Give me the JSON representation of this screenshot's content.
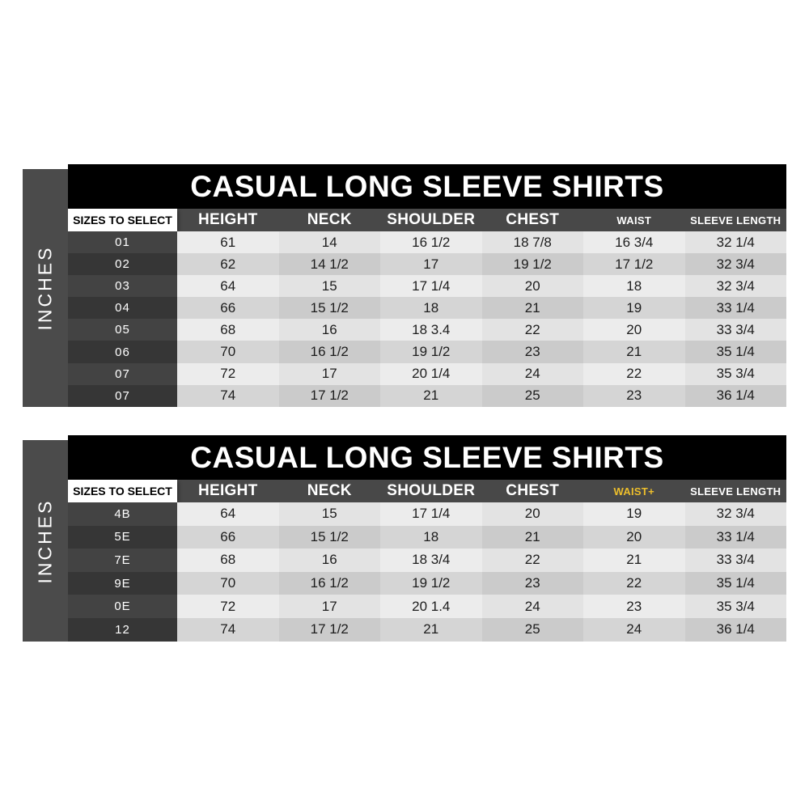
{
  "chart_data": [
    {
      "type": "table",
      "title": "CASUAL LONG SLEEVE SHIRTS",
      "unit_label": "INCHES",
      "size_header": "SIZES TO SELECT",
      "columns": [
        {
          "label": "HEIGHT",
          "emphasis": "large"
        },
        {
          "label": "NECK",
          "emphasis": "large"
        },
        {
          "label": "SHOULDER",
          "emphasis": "large"
        },
        {
          "label": "CHEST",
          "emphasis": "large"
        },
        {
          "label": "WAIST",
          "emphasis": "small"
        },
        {
          "label": "SLEEVE LENGTH",
          "emphasis": "small"
        }
      ],
      "rows": [
        {
          "size": "01",
          "values": [
            "61",
            "14",
            "16 1/2",
            "18 7/8",
            "16 3/4",
            "32 1/4"
          ]
        },
        {
          "size": "02",
          "values": [
            "62",
            "14 1/2",
            "17",
            "19 1/2",
            "17 1/2",
            "32 3/4"
          ]
        },
        {
          "size": "03",
          "values": [
            "64",
            "15",
            "17 1/4",
            "20",
            "18",
            "32 3/4"
          ]
        },
        {
          "size": "04",
          "values": [
            "66",
            "15 1/2",
            "18",
            "21",
            "19",
            "33 1/4"
          ]
        },
        {
          "size": "05",
          "values": [
            "68",
            "16",
            "18 3.4",
            "22",
            "20",
            "33 3/4"
          ]
        },
        {
          "size": "06",
          "values": [
            "70",
            "16 1/2",
            "19 1/2",
            "23",
            "21",
            "35 1/4"
          ]
        },
        {
          "size": "07",
          "values": [
            "72",
            "17",
            "20 1/4",
            "24",
            "22",
            "35 3/4"
          ]
        },
        {
          "size": "07",
          "values": [
            "74",
            "17 1/2",
            "21",
            "25",
            "23",
            "36 1/4"
          ]
        }
      ]
    },
    {
      "type": "table",
      "title": "CASUAL LONG SLEEVE SHIRTS",
      "unit_label": "INCHES",
      "size_header": "SIZES TO SELECT",
      "columns": [
        {
          "label": "HEIGHT",
          "emphasis": "large"
        },
        {
          "label": "NECK",
          "emphasis": "large"
        },
        {
          "label": "SHOULDER",
          "emphasis": "large"
        },
        {
          "label": "CHEST",
          "emphasis": "large"
        },
        {
          "label": "WAIST+",
          "emphasis": "small",
          "color": "#ecbe2c"
        },
        {
          "label": "SLEEVE LENGTH",
          "emphasis": "small"
        }
      ],
      "rows": [
        {
          "size": "4B",
          "values": [
            "64",
            "15",
            "17 1/4",
            "20",
            "19",
            "32 3/4"
          ]
        },
        {
          "size": "5E",
          "values": [
            "66",
            "15 1/2",
            "18",
            "21",
            "20",
            "33 1/4"
          ]
        },
        {
          "size": "7E",
          "values": [
            "68",
            "16",
            "18 3/4",
            "22",
            "21",
            "33 3/4"
          ]
        },
        {
          "size": "9E",
          "values": [
            "70",
            "16 1/2",
            "19 1/2",
            "23",
            "22",
            "35 1/4"
          ]
        },
        {
          "size": "0E",
          "values": [
            "72",
            "17",
            "20 1.4",
            "24",
            "23",
            "35 3/4"
          ]
        },
        {
          "size": "12",
          "values": [
            "74",
            "17 1/2",
            "21",
            "25",
            "24",
            "36 1/4"
          ]
        }
      ]
    }
  ],
  "colors": {
    "title_bar": "#000000",
    "header_row": "#484848",
    "sidebar": "#4b4b4b",
    "size_cell_light": "#434343",
    "size_cell_dark": "#363636",
    "row_light_a": "#ececec",
    "row_light_b": "#e3e3e3",
    "row_dark_a": "#d5d5d5",
    "row_dark_b": "#cbcbcb",
    "highlight": "#ecbe2c",
    "text_dark": "#1d1d1d",
    "text_light": "#ffffff"
  }
}
